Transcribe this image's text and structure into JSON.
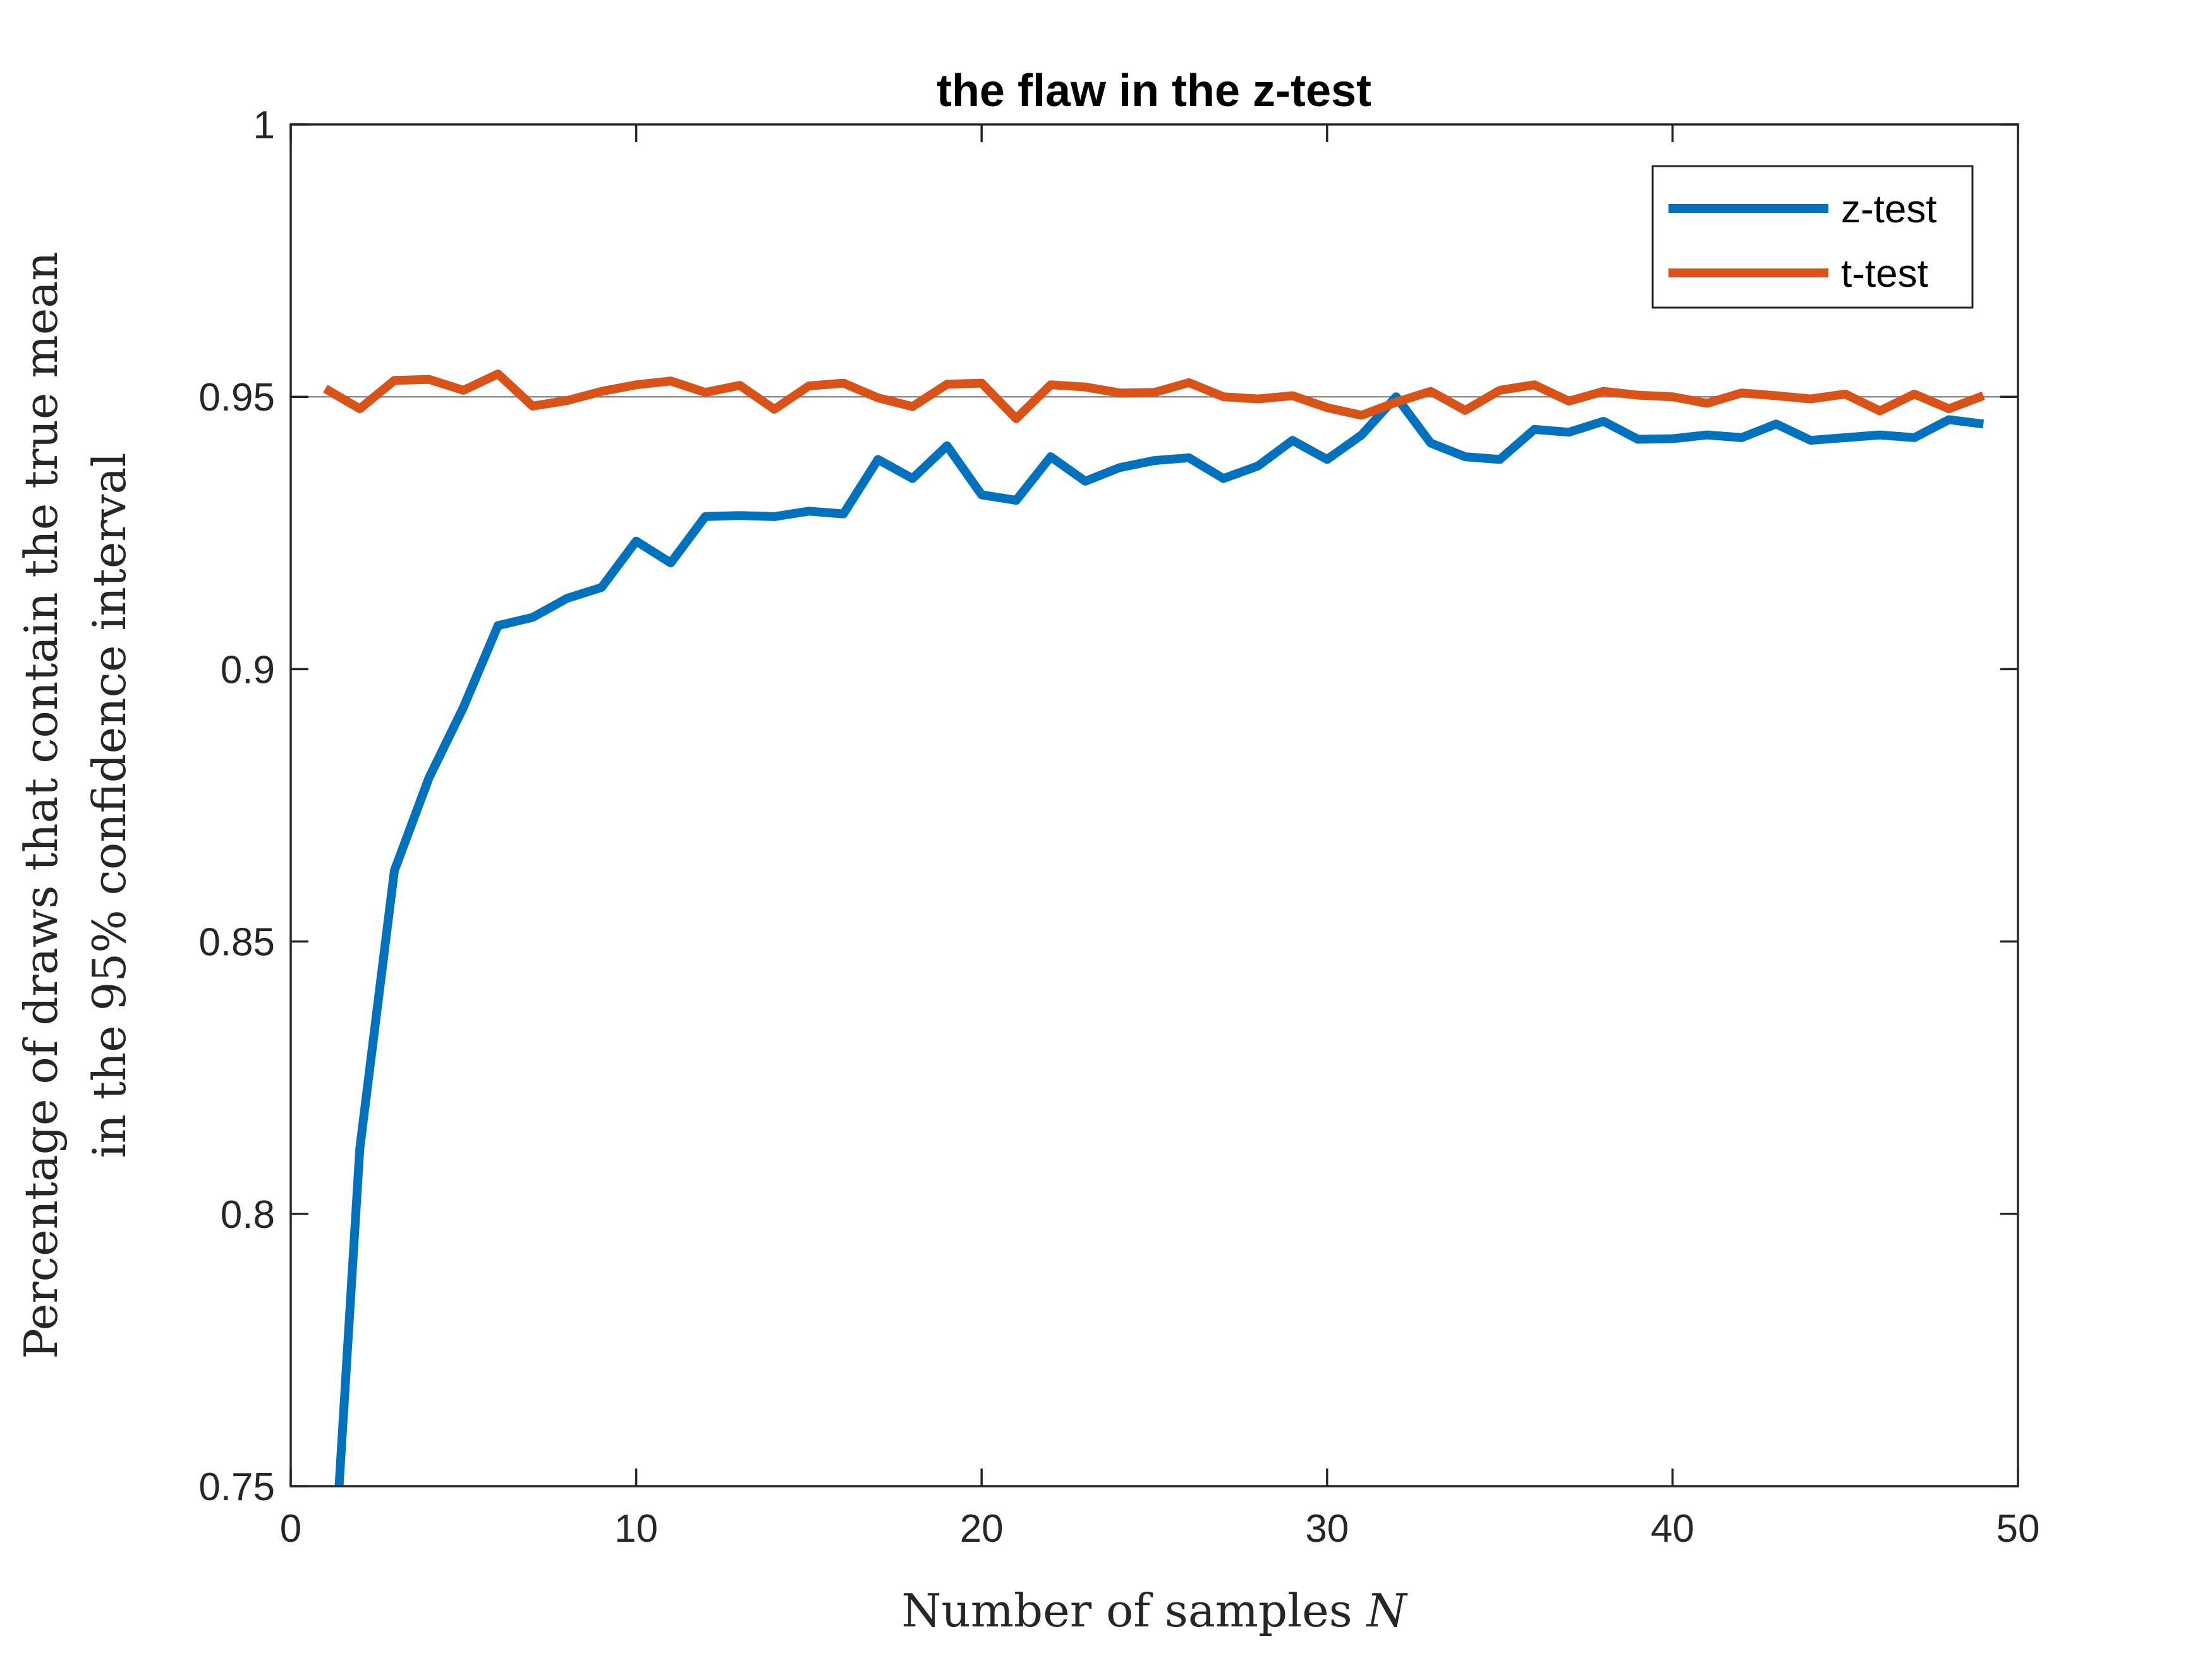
{
  "chart_data": {
    "type": "line",
    "title": "the flaw in the z-test",
    "xlabel": "Number of samples N",
    "xlabel_text": "Number of samples ",
    "xlabel_var": "N",
    "ylabel": [
      "Percentage of draws that contain the true mean",
      "in the 95% confidence interval"
    ],
    "xlim": [
      0,
      50
    ],
    "ylim": [
      0.75,
      1
    ],
    "xticks": [
      0,
      10,
      20,
      30,
      40,
      50
    ],
    "xtick_labels": [
      "0",
      "10",
      "20",
      "30",
      "40",
      "50"
    ],
    "yticks": [
      0.75,
      0.8,
      0.85,
      0.9,
      0.95,
      1
    ],
    "ytick_labels": [
      "0.75",
      "0.8",
      "0.85",
      "0.9",
      "0.95",
      "1"
    ],
    "grid": false,
    "reference_line": 0.95,
    "legend_position": "top-right",
    "x": [
      2,
      3,
      4,
      5,
      6,
      7,
      8,
      9,
      10,
      11,
      12,
      13,
      14,
      15,
      16,
      17,
      18,
      19,
      20,
      21,
      22,
      23,
      24,
      25,
      26,
      27,
      28,
      29,
      30,
      31,
      32,
      33,
      34,
      35,
      36,
      37,
      38,
      39,
      40,
      41,
      42,
      43,
      44,
      45,
      46,
      47,
      48,
      49
    ],
    "series": [
      {
        "name": "z-test",
        "color": "#0072BD",
        "x": [
          1.4,
          2,
          3,
          4,
          5,
          6,
          7,
          8,
          9,
          10,
          11,
          12,
          13,
          14,
          15,
          16,
          17,
          18,
          19,
          20,
          21,
          22,
          23,
          24,
          25,
          26,
          27,
          28,
          29,
          30,
          31,
          32,
          33,
          34,
          35,
          36,
          37,
          38,
          39,
          40,
          41,
          42,
          43,
          44,
          45,
          46,
          47,
          48,
          49
        ],
        "values": [
          0.75,
          0.812,
          0.863,
          0.88,
          0.893,
          0.908,
          0.9095,
          0.913,
          0.915,
          0.9235,
          0.9195,
          0.928,
          0.9282,
          0.928,
          0.929,
          0.9285,
          0.9385,
          0.935,
          0.941,
          0.932,
          0.931,
          0.939,
          0.9345,
          0.937,
          0.9383,
          0.9388,
          0.935,
          0.9373,
          0.942,
          0.9385,
          0.943,
          0.95,
          0.9415,
          0.939,
          0.9385,
          0.944,
          0.9435,
          0.9455,
          0.9422,
          0.9423,
          0.943,
          0.9425,
          0.945,
          0.942,
          0.9425,
          0.943,
          0.9425,
          0.9458,
          0.945
        ]
      },
      {
        "name": "t-test",
        "color": "#D95319",
        "values": [
          0.9515,
          0.9478,
          0.953,
          0.9532,
          0.9512,
          0.9542,
          0.9483,
          0.9493,
          0.951,
          0.9522,
          0.9529,
          0.9508,
          0.9521,
          0.9477,
          0.952,
          0.9525,
          0.9498,
          0.9482,
          0.9523,
          0.9525,
          0.946,
          0.9522,
          0.9518,
          0.9507,
          0.9508,
          0.9526,
          0.95,
          0.9496,
          0.9502,
          0.948,
          0.9466,
          0.949,
          0.951,
          0.9475,
          0.9512,
          0.9522,
          0.9492,
          0.951,
          0.9503,
          0.95,
          0.9488,
          0.9507,
          0.9502,
          0.9496,
          0.9505,
          0.9474,
          0.9505,
          0.9478,
          0.9502
        ],
        "x": [
          1,
          2,
          3,
          4,
          5,
          6,
          7,
          8,
          9,
          10,
          11,
          12,
          13,
          14,
          15,
          16,
          17,
          18,
          19,
          20,
          21,
          22,
          23,
          24,
          25,
          26,
          27,
          28,
          29,
          30,
          31,
          32,
          33,
          34,
          35,
          36,
          37,
          38,
          39,
          40,
          41,
          42,
          43,
          44,
          45,
          46,
          47,
          48,
          49
        ]
      }
    ]
  }
}
